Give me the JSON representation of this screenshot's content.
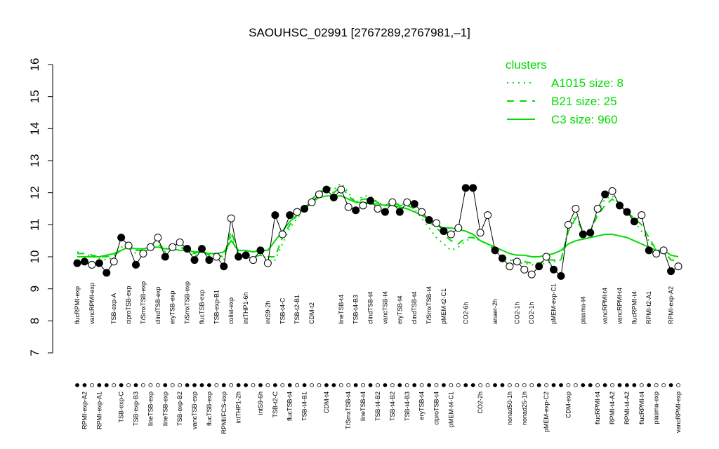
{
  "chart_data": {
    "type": "line",
    "title": "SAOUHSC_02991 [2767289,2767981,–1]",
    "legend_title": "clusters",
    "legend_position": "top-right",
    "ylim": [
      7,
      16
    ],
    "yticks": [
      7,
      8,
      9,
      10,
      11,
      12,
      13,
      14,
      15,
      16
    ],
    "categories": [
      "flucRPMI-exp",
      "RPMI-exp-A2",
      "vancRPMI-exp",
      "RPMI-exp-A1",
      null,
      "TSB-exp-A",
      "TSB-exp-C",
      "ciproTSB-exp",
      "TSB-exp-B3",
      "T/SmxTSB-exp",
      "lineTSB-exp",
      "clindTSB-exp",
      "lineTSB-exp",
      "eryTSB-exp",
      "TSB-exp-B2",
      "T/SmxTSB-exp",
      "vancTSB-exp",
      "flucTSB-exp",
      "flucTSB-exp",
      "TSB-exp-B1",
      "RPMI/FCS-exp",
      "colist-exp",
      "intTHP1-2h",
      "intTHP1-6h",
      null,
      "intS9-6h",
      "intS9-2h",
      "TSB-t2-C",
      "TSB-t4-C",
      "flucTSB-t4",
      "TSB-t2-B1",
      "TSB-t4-B1",
      "CDM-t2",
      null,
      "CDM-t4",
      null,
      "lineTSB-t4",
      "T/SmxTSB-t4",
      "TSB-t4-B3",
      "lineTSB-t4",
      "clindTSB-t4",
      "TSB-t4-B2",
      "vancTSB-t4",
      "TSB-t4-B2",
      "eryTSB-t4",
      "TSB-t4-B3",
      "clindTSB-t4",
      "eryTSB-t4",
      "T/SmxTSB-t4",
      "ciproTSB-t4",
      "pMEM-t2-C1",
      "pMEM-t4-C1",
      null,
      "CO2-6h",
      null,
      "CO2-2h",
      null,
      "anaer-2h",
      null,
      "nonad50-1h",
      "CO2-1h",
      "nonad25-1h",
      "CO2-1h",
      null,
      "pMEM-exp-C2",
      "pMEM-exp-C1",
      null,
      "CDM-exp",
      null,
      "plasma-t4",
      null,
      "flucRPMI-t4",
      "vancRPMI-t4",
      "RPMI-t4-A2",
      "vancRPMI-t4",
      "RPMI-t4-A2",
      "flucRPMI-t4",
      "flucRPMI-t4",
      "RPMI-t2-A1",
      "plasma-exp",
      null,
      "RPMI-exp-A2",
      "vancRPMI-exp"
    ],
    "values": [
      9.8,
      9.85,
      9.75,
      9.8,
      9.5,
      9.85,
      10.6,
      10.35,
      9.75,
      10.1,
      10.3,
      10.6,
      10.0,
      10.3,
      10.45,
      10.25,
      9.9,
      10.25,
      9.9,
      10.0,
      9.7,
      11.2,
      10.0,
      10.05,
      9.9,
      10.2,
      9.8,
      11.3,
      10.7,
      11.3,
      11.4,
      11.5,
      11.7,
      11.95,
      12.1,
      11.85,
      12.1,
      11.55,
      11.45,
      11.6,
      11.75,
      11.5,
      11.4,
      11.7,
      11.4,
      11.7,
      11.65,
      11.4,
      11.15,
      11.05,
      10.8,
      10.7,
      10.9,
      12.15,
      12.15,
      10.75,
      11.3,
      10.2,
      9.95,
      9.7,
      9.85,
      9.6,
      9.45,
      9.7,
      10.0,
      9.6,
      9.4,
      11.0,
      11.5,
      10.7,
      10.75,
      11.5,
      11.95,
      12.05,
      11.6,
      11.4,
      11.1,
      11.3,
      10.2,
      10.1,
      10.2,
      9.55,
      9.7
    ],
    "point_fills": [
      "black",
      "black",
      "white",
      "black",
      "black",
      "white",
      "black",
      "white",
      "black",
      "white",
      "white",
      "white",
      "black",
      "white",
      "white",
      "black",
      "black",
      "black",
      "black",
      "white",
      "black",
      "white",
      "black",
      "black",
      "white",
      "black",
      "white",
      "black",
      "white",
      "black",
      "white",
      "black",
      "white",
      "white",
      "black",
      "black",
      "white",
      "white",
      "black",
      "white",
      "black",
      "white",
      "black",
      "white",
      "black",
      "white",
      "black",
      "white",
      "black",
      "white",
      "black",
      "white",
      "white",
      "black",
      "black",
      "white",
      "white",
      "black",
      "black",
      "white",
      "white",
      "white",
      "white",
      "black",
      "white",
      "black",
      "black",
      "white",
      "white",
      "black",
      "black",
      "white",
      "black",
      "white",
      "black",
      "black",
      "black",
      "white",
      "black",
      "white",
      "white",
      "black",
      "white"
    ],
    "series": [
      {
        "name": "A1015 size: 8",
        "color": "#00dd00",
        "dash": "dotted",
        "values": [
          10.15,
          10.1,
          10.0,
          9.95,
          9.9,
          10.0,
          10.3,
          10.35,
          10.1,
          10.2,
          10.4,
          10.5,
          10.15,
          10.35,
          10.4,
          10.2,
          10.0,
          10.2,
          10.0,
          10.0,
          9.9,
          10.7,
          10.0,
          10.0,
          9.95,
          10.1,
          9.9,
          9.9,
          10.4,
          10.9,
          11.2,
          11.5,
          11.8,
          12.0,
          12.2,
          12.1,
          12.3,
          12.0,
          11.7,
          11.9,
          11.9,
          11.7,
          11.6,
          11.8,
          11.6,
          11.7,
          11.5,
          11.2,
          10.9,
          10.6,
          10.4,
          10.2,
          10.3,
          10.5,
          10.6,
          10.5,
          10.4,
          10.2,
          10.0,
          9.9,
          9.8,
          9.8,
          9.75,
          9.75,
          9.8,
          9.85,
          9.9,
          10.9,
          11.3,
          10.8,
          10.8,
          11.4,
          11.8,
          11.9,
          11.6,
          11.4,
          11.1,
          10.8,
          10.5,
          10.2,
          10.15,
          9.9,
          9.85
        ]
      },
      {
        "name": "B21 size: 25",
        "color": "#00dd00",
        "dash": "dashed",
        "values": [
          10.1,
          10.1,
          10.05,
          10.0,
          10.0,
          10.05,
          10.2,
          10.35,
          10.2,
          10.2,
          10.35,
          10.4,
          10.2,
          10.3,
          10.3,
          10.2,
          10.1,
          10.2,
          10.05,
          10.05,
          10.0,
          10.8,
          10.1,
          10.1,
          10.0,
          10.05,
          10.0,
          10.0,
          10.6,
          11.0,
          11.3,
          11.5,
          11.8,
          12.0,
          12.1,
          12.0,
          12.2,
          11.9,
          11.7,
          11.8,
          11.8,
          11.7,
          11.6,
          11.7,
          11.6,
          11.6,
          11.5,
          11.3,
          11.1,
          10.9,
          10.7,
          10.5,
          10.4,
          10.6,
          10.6,
          10.5,
          10.4,
          10.2,
          10.0,
          9.9,
          9.9,
          9.85,
          9.8,
          9.8,
          9.9,
          9.9,
          9.9,
          10.8,
          11.2,
          10.8,
          10.8,
          11.3,
          11.6,
          11.8,
          11.6,
          11.4,
          11.2,
          11.0,
          10.6,
          10.2,
          10.2,
          9.9,
          9.9
        ]
      },
      {
        "name": "C3 size: 960",
        "color": "#00dd00",
        "dash": "solid",
        "values": [
          10.0,
          10.0,
          10.0,
          10.0,
          10.05,
          10.1,
          10.2,
          10.3,
          10.25,
          10.25,
          10.3,
          10.3,
          10.25,
          10.25,
          10.2,
          10.2,
          10.15,
          10.15,
          10.1,
          10.1,
          10.15,
          10.5,
          10.2,
          10.2,
          10.15,
          10.2,
          10.2,
          10.5,
          10.8,
          11.1,
          11.3,
          11.5,
          11.7,
          11.85,
          11.9,
          11.9,
          11.9,
          11.8,
          11.7,
          11.7,
          11.65,
          11.65,
          11.6,
          11.6,
          11.55,
          11.5,
          11.4,
          11.3,
          11.15,
          11.0,
          10.9,
          10.9,
          10.85,
          10.8,
          10.7,
          10.5,
          10.4,
          10.3,
          10.2,
          10.1,
          10.05,
          10.05,
          10.0,
          10.0,
          10.05,
          10.1,
          10.2,
          10.4,
          10.5,
          10.55,
          10.6,
          10.65,
          10.7,
          10.7,
          10.65,
          10.6,
          10.5,
          10.4,
          10.3,
          10.2,
          10.2,
          10.05,
          10.0
        ]
      }
    ]
  }
}
